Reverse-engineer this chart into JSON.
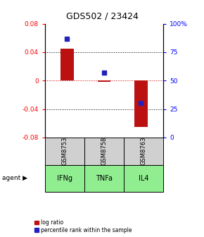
{
  "title": "GDS502 / 23424",
  "samples": [
    "GSM8753",
    "GSM8758",
    "GSM8763"
  ],
  "agents": [
    "IFNg",
    "TNFa",
    "IL4"
  ],
  "log_ratios": [
    0.045,
    -0.002,
    -0.065
  ],
  "percentile_ranks": [
    87,
    57,
    30
  ],
  "ylim_left": [
    -0.08,
    0.08
  ],
  "ylim_right": [
    0,
    100
  ],
  "yticks_left": [
    -0.08,
    -0.04,
    0,
    0.04,
    0.08
  ],
  "yticks_right": [
    0,
    25,
    50,
    75,
    100
  ],
  "ytick_labels_right": [
    "0",
    "25",
    "50",
    "75",
    "100%"
  ],
  "bar_color": "#bb1111",
  "dot_color": "#2222bb",
  "agent_bg_color": "#90ee90",
  "sample_bg_color": "#d0d0d0",
  "zero_line_color": "#cc0000",
  "legend_bar_label": "log ratio",
  "legend_dot_label": "percentile rank within the sample",
  "agent_label": "agent",
  "bar_width": 0.35
}
